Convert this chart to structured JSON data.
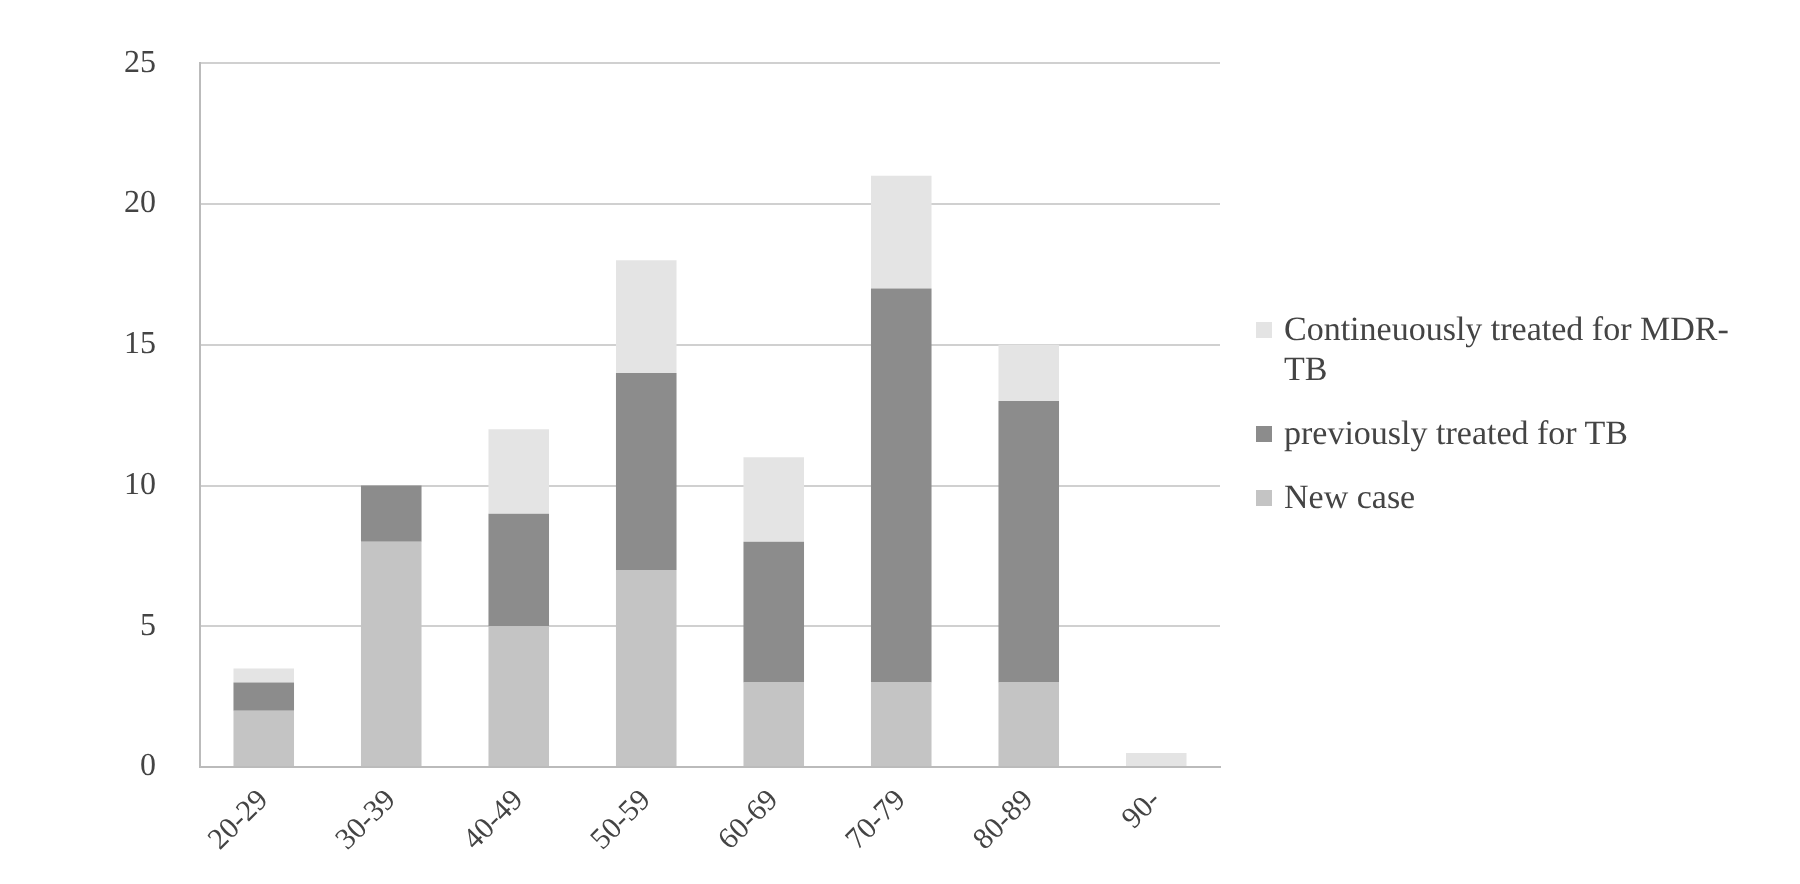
{
  "chart_data": {
    "type": "bar",
    "stacked": true,
    "categories": [
      "20-29",
      "30-39",
      "40-49",
      "50-59",
      "60-69",
      "70-79",
      "80-89",
      "90-"
    ],
    "series": [
      {
        "name": "New case",
        "color": "#c4c4c4",
        "values": [
          2,
          8,
          5,
          7,
          3,
          3,
          3,
          0
        ]
      },
      {
        "name": "previously treated for TB",
        "color": "#8c8c8c",
        "values": [
          1,
          2,
          4,
          7,
          5,
          14,
          10,
          0
        ]
      },
      {
        "name": "Contineuously treated for MDR-TB",
        "color": "#e4e4e4",
        "values": [
          0.5,
          0,
          3,
          4,
          3,
          4,
          2,
          0.5
        ]
      }
    ],
    "ylim": [
      0,
      25
    ],
    "yticks": [
      0,
      5,
      10,
      15,
      20,
      25
    ],
    "grid": "y",
    "legend": "right"
  }
}
